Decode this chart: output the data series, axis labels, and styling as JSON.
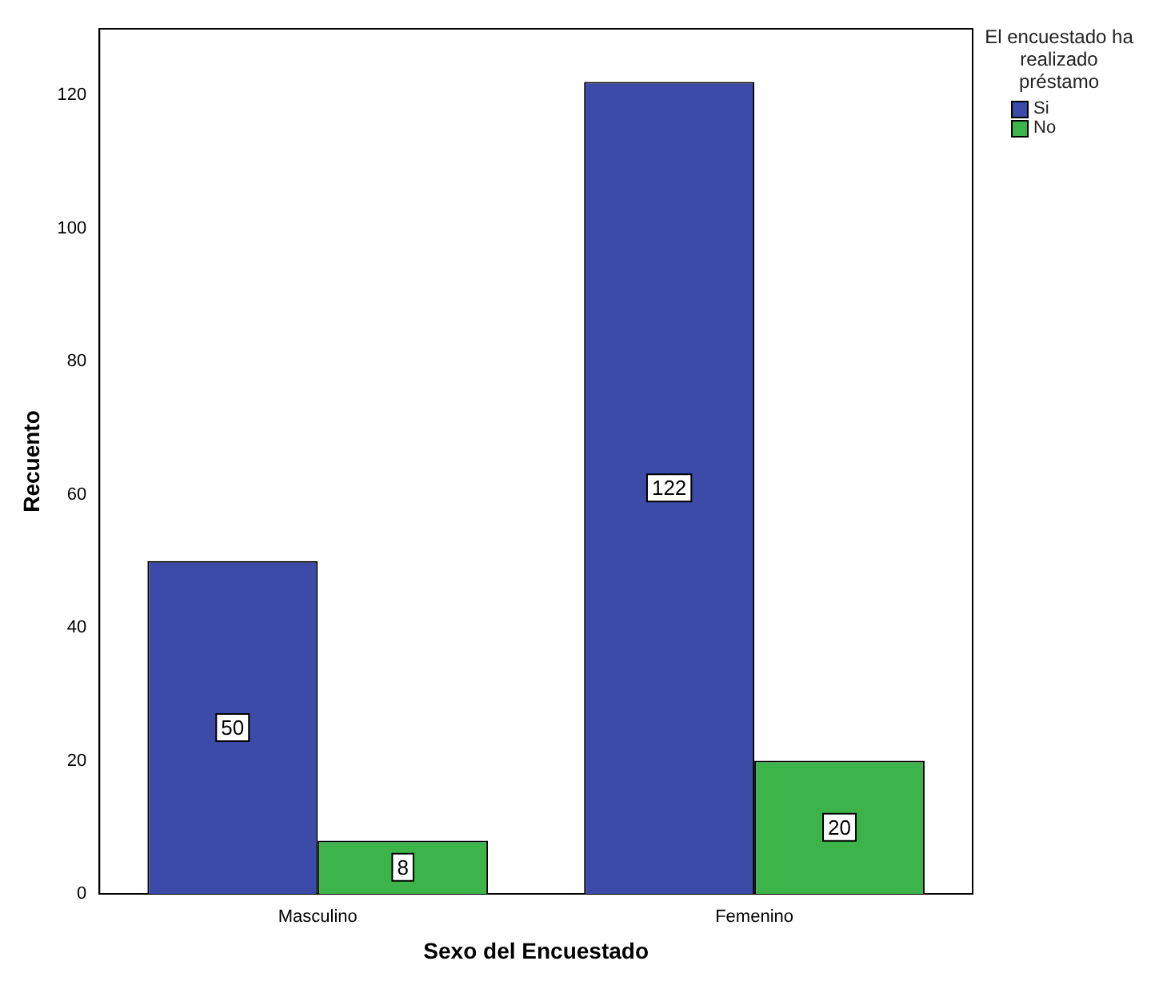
{
  "chart_data": {
    "type": "bar",
    "xlabel": "Sexo del Encuestado",
    "ylabel": "Recuento",
    "legend_title": "El encuestado ha realizado préstamo",
    "categories": [
      "Masculino",
      "Femenino"
    ],
    "series": [
      {
        "name": "Si",
        "color": "#3c4aa8",
        "values": [
          50,
          122
        ]
      },
      {
        "name": "No",
        "color": "#3cb44a",
        "values": [
          8,
          20
        ]
      }
    ],
    "ylim": [
      0,
      130
    ],
    "yticks": [
      0,
      20,
      40,
      60,
      80,
      100,
      120
    ],
    "grid": false,
    "legend": "top right",
    "data_labels": true
  }
}
